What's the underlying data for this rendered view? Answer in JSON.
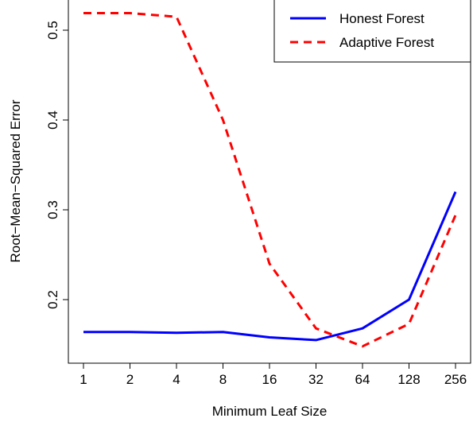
{
  "chart_data": {
    "type": "line",
    "title": "",
    "xlabel": "Minimum Leaf Size",
    "ylabel": "Root−Mean−Squared Error",
    "x_scale": "log2",
    "categories": [
      "1",
      "2",
      "4",
      "8",
      "16",
      "32",
      "64",
      "128",
      "256"
    ],
    "x": [
      1,
      2,
      4,
      8,
      16,
      32,
      64,
      128,
      256
    ],
    "y_ticks": [
      "0.2",
      "0.3",
      "0.4",
      "0.5"
    ],
    "y_tick_values": [
      0.2,
      0.3,
      0.4,
      0.5
    ],
    "ylim": [
      0.14,
      0.535
    ],
    "grid": false,
    "legend_position": "top-right",
    "series": [
      {
        "name": "Honest Forest",
        "color": "#0000ff",
        "line_style": "solid",
        "values": [
          0.164,
          0.164,
          0.163,
          0.164,
          0.158,
          0.155,
          0.168,
          0.2,
          0.32
        ]
      },
      {
        "name": "Adaptive Forest",
        "color": "#ff0000",
        "line_style": "dashed",
        "values": [
          0.519,
          0.519,
          0.515,
          0.4,
          0.24,
          0.168,
          0.148,
          0.173,
          0.294
        ]
      }
    ]
  }
}
